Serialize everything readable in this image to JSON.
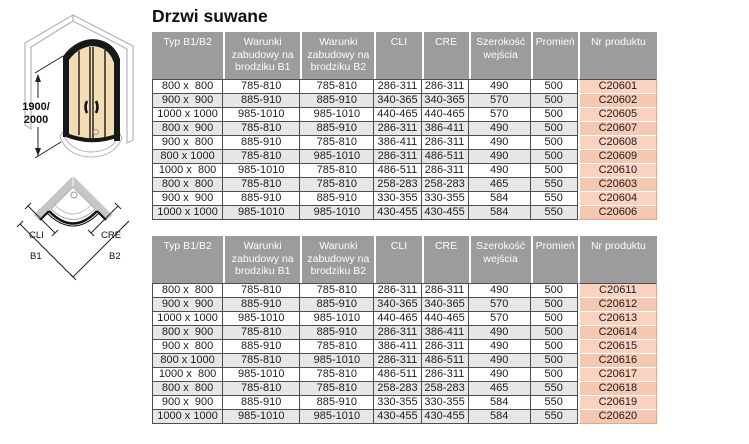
{
  "page": {
    "title": "Drzwi suwane"
  },
  "diagram_front": {
    "height_label_line1": "1900/",
    "height_label_line2": "2000"
  },
  "diagram_plan": {
    "labels": {
      "cli": "CLI",
      "cre": "CRE",
      "b1": "B1",
      "b2": "B2"
    }
  },
  "columns": [
    "Typ B1/B2",
    "Warunki zabudowy na brodziku B1",
    "Warunki zabudowy na brodziku B2",
    "CLI",
    "CRE",
    "Szerokość wejścia",
    "Promień",
    "Nr produktu"
  ],
  "tables": [
    {
      "rows": [
        {
          "typ": "800 x  800",
          "b1": "785-810",
          "b2": "785-810",
          "cli": "286-311",
          "cre": "286-311",
          "szerokosc": "490",
          "promien": "500",
          "nr": "C20601"
        },
        {
          "typ": "900 x  900",
          "b1": "885-910",
          "b2": "885-910",
          "cli": "340-365",
          "cre": "340-365",
          "szerokosc": "570",
          "promien": "500",
          "nr": "C20602"
        },
        {
          "typ": "1000 x 1000",
          "b1": "985-1010",
          "b2": "985-1010",
          "cli": "440-465",
          "cre": "440-465",
          "szerokosc": "570",
          "promien": "500",
          "nr": "C20605"
        },
        {
          "typ": "800 x  900",
          "b1": "785-810",
          "b2": "885-910",
          "cli": "286-311",
          "cre": "386-411",
          "szerokosc": "490",
          "promien": "500",
          "nr": "C20607"
        },
        {
          "typ": "900 x  800",
          "b1": "885-910",
          "b2": "785-810",
          "cli": "386-411",
          "cre": "286-311",
          "szerokosc": "490",
          "promien": "500",
          "nr": "C20608"
        },
        {
          "typ": "800 x 1000",
          "b1": "785-810",
          "b2": "985-1010",
          "cli": "286-311",
          "cre": "486-511",
          "szerokosc": "490",
          "promien": "500",
          "nr": "C20609"
        },
        {
          "typ": "1000 x  800",
          "b1": "985-1010",
          "b2": "785-810",
          "cli": "486-511",
          "cre": "286-311",
          "szerokosc": "490",
          "promien": "500",
          "nr": "C20610"
        },
        {
          "typ": "800 x  800",
          "b1": "785-810",
          "b2": "785-810",
          "cli": "258-283",
          "cre": "258-283",
          "szerokosc": "465",
          "promien": "550",
          "nr": "C20603"
        },
        {
          "typ": "900 x  900",
          "b1": "885-910",
          "b2": "885-910",
          "cli": "330-355",
          "cre": "330-355",
          "szerokosc": "584",
          "promien": "550",
          "nr": "C20604"
        },
        {
          "typ": "1000 x 1000",
          "b1": "985-1010",
          "b2": "985-1010",
          "cli": "430-455",
          "cre": "430-455",
          "szerokosc": "584",
          "promien": "550",
          "nr": "C20606"
        }
      ]
    },
    {
      "rows": [
        {
          "typ": "800 x  800",
          "b1": "785-810",
          "b2": "785-810",
          "cli": "286-311",
          "cre": "286-311",
          "szerokosc": "490",
          "promien": "500",
          "nr": "C20611"
        },
        {
          "typ": "900 x  900",
          "b1": "885-910",
          "b2": "885-910",
          "cli": "340-365",
          "cre": "340-365",
          "szerokosc": "570",
          "promien": "500",
          "nr": "C20612"
        },
        {
          "typ": "1000 x 1000",
          "b1": "985-1010",
          "b2": "985-1010",
          "cli": "440-465",
          "cre": "440-465",
          "szerokosc": "570",
          "promien": "500",
          "nr": "C20613"
        },
        {
          "typ": "800 x  900",
          "b1": "785-810",
          "b2": "885-910",
          "cli": "286-311",
          "cre": "386-411",
          "szerokosc": "490",
          "promien": "500",
          "nr": "C20614"
        },
        {
          "typ": "900 x  800",
          "b1": "885-910",
          "b2": "785-810",
          "cli": "386-411",
          "cre": "286-311",
          "szerokosc": "490",
          "promien": "500",
          "nr": "C20615"
        },
        {
          "typ": "800 x 1000",
          "b1": "785-810",
          "b2": "985-1010",
          "cli": "286-311",
          "cre": "486-511",
          "szerokosc": "490",
          "promien": "500",
          "nr": "C20616"
        },
        {
          "typ": "1000 x  800",
          "b1": "985-1010",
          "b2": "785-810",
          "cli": "486-511",
          "cre": "286-311",
          "szerokosc": "490",
          "promien": "500",
          "nr": "C20617"
        },
        {
          "typ": "800 x  800",
          "b1": "785-810",
          "b2": "785-810",
          "cli": "258-283",
          "cre": "258-283",
          "szerokosc": "465",
          "promien": "550",
          "nr": "C20618"
        },
        {
          "typ": "900 x  900",
          "b1": "885-910",
          "b2": "885-910",
          "cli": "330-355",
          "cre": "330-355",
          "szerokosc": "584",
          "promien": "550",
          "nr": "C20619"
        },
        {
          "typ": "1000 x 1000",
          "b1": "985-1010",
          "b2": "985-1010",
          "cli": "430-455",
          "cre": "430-455",
          "szerokosc": "584",
          "promien": "550",
          "nr": "C20620"
        }
      ]
    }
  ],
  "colors": {
    "header_bg": "#9c9c9c",
    "row_alt": "#e7e7e7",
    "line": "#4d4d4d",
    "product_odd": "#fad2c0",
    "product_even": "#f5c8b2",
    "product_edge": "#dca98f",
    "glass": "#f2ddb4",
    "wall": "#c6c6c6",
    "frame": "#181818"
  }
}
